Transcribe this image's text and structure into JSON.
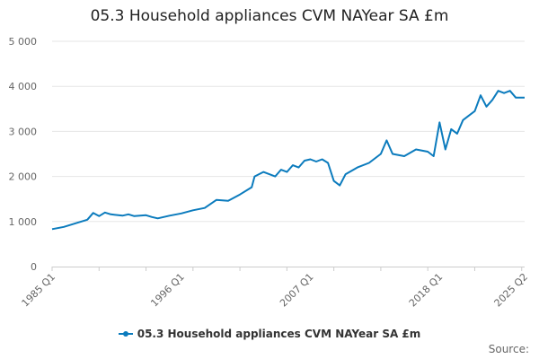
{
  "chart_data": {
    "type": "line",
    "title": "05.3 Household appliances CVM NAYear SA £m",
    "xlabel": "",
    "ylabel": "",
    "x_ticks": [
      "1985 Q1",
      "1996 Q1",
      "2007 Q1",
      "2018 Q1",
      "2025 Q2"
    ],
    "x_range": [
      "1985 Q1",
      "2025 Q2"
    ],
    "y_ticks": [
      "0",
      "1 000",
      "2 000",
      "3 000",
      "4 000",
      "5 000"
    ],
    "ylim": [
      0,
      5000
    ],
    "grid": "horizontal",
    "legend_position": "bottom",
    "color": "#0b7bbd",
    "series": [
      {
        "name": "05.3 Household appliances CVM NAYear SA £m",
        "points": [
          [
            "1985 Q1",
            830
          ],
          [
            "1986 Q1",
            880
          ],
          [
            "1987 Q1",
            960
          ],
          [
            "1988 Q1",
            1040
          ],
          [
            "1988 Q3",
            1190
          ],
          [
            "1989 Q1",
            1120
          ],
          [
            "1989 Q3",
            1200
          ],
          [
            "1990 Q1",
            1160
          ],
          [
            "1991 Q1",
            1130
          ],
          [
            "1991 Q3",
            1160
          ],
          [
            "1992 Q1",
            1120
          ],
          [
            "1993 Q1",
            1140
          ],
          [
            "1993 Q3",
            1100
          ],
          [
            "1994 Q1",
            1070
          ],
          [
            "1995 Q1",
            1130
          ],
          [
            "1996 Q1",
            1180
          ],
          [
            "1997 Q1",
            1250
          ],
          [
            "1998 Q1",
            1300
          ],
          [
            "1999 Q1",
            1480
          ],
          [
            "2000 Q1",
            1460
          ],
          [
            "2001 Q1",
            1600
          ],
          [
            "2002 Q1",
            1760
          ],
          [
            "2002 Q2",
            2000
          ],
          [
            "2003 Q1",
            2100
          ],
          [
            "2004 Q1",
            2000
          ],
          [
            "2004 Q3",
            2150
          ],
          [
            "2005 Q1",
            2100
          ],
          [
            "2005 Q3",
            2250
          ],
          [
            "2006 Q1",
            2200
          ],
          [
            "2006 Q3",
            2350
          ],
          [
            "2007 Q1",
            2380
          ],
          [
            "2007 Q3",
            2330
          ],
          [
            "2008 Q1",
            2380
          ],
          [
            "2008 Q3",
            2300
          ],
          [
            "2009 Q1",
            1900
          ],
          [
            "2009 Q3",
            1800
          ],
          [
            "2010 Q1",
            2050
          ],
          [
            "2011 Q1",
            2200
          ],
          [
            "2012 Q1",
            2300
          ],
          [
            "2013 Q1",
            2500
          ],
          [
            "2013 Q3",
            2800
          ],
          [
            "2014 Q1",
            2500
          ],
          [
            "2015 Q1",
            2450
          ],
          [
            "2016 Q1",
            2600
          ],
          [
            "2017 Q1",
            2550
          ],
          [
            "2017 Q3",
            2450
          ],
          [
            "2018 Q1",
            3200
          ],
          [
            "2018 Q3",
            2600
          ],
          [
            "2019 Q1",
            3050
          ],
          [
            "2019 Q3",
            2950
          ],
          [
            "2020 Q1",
            3250
          ],
          [
            "2020 Q3",
            3350
          ],
          [
            "2021 Q1",
            3450
          ],
          [
            "2021 Q3",
            3800
          ],
          [
            "2022 Q1",
            3550
          ],
          [
            "2022 Q3",
            3700
          ],
          [
            "2023 Q1",
            3900
          ],
          [
            "2023 Q3",
            3850
          ],
          [
            "2024 Q1",
            3900
          ],
          [
            "2024 Q3",
            3750
          ],
          [
            "2025 Q2",
            3750
          ]
        ]
      }
    ],
    "source": "Source:"
  }
}
